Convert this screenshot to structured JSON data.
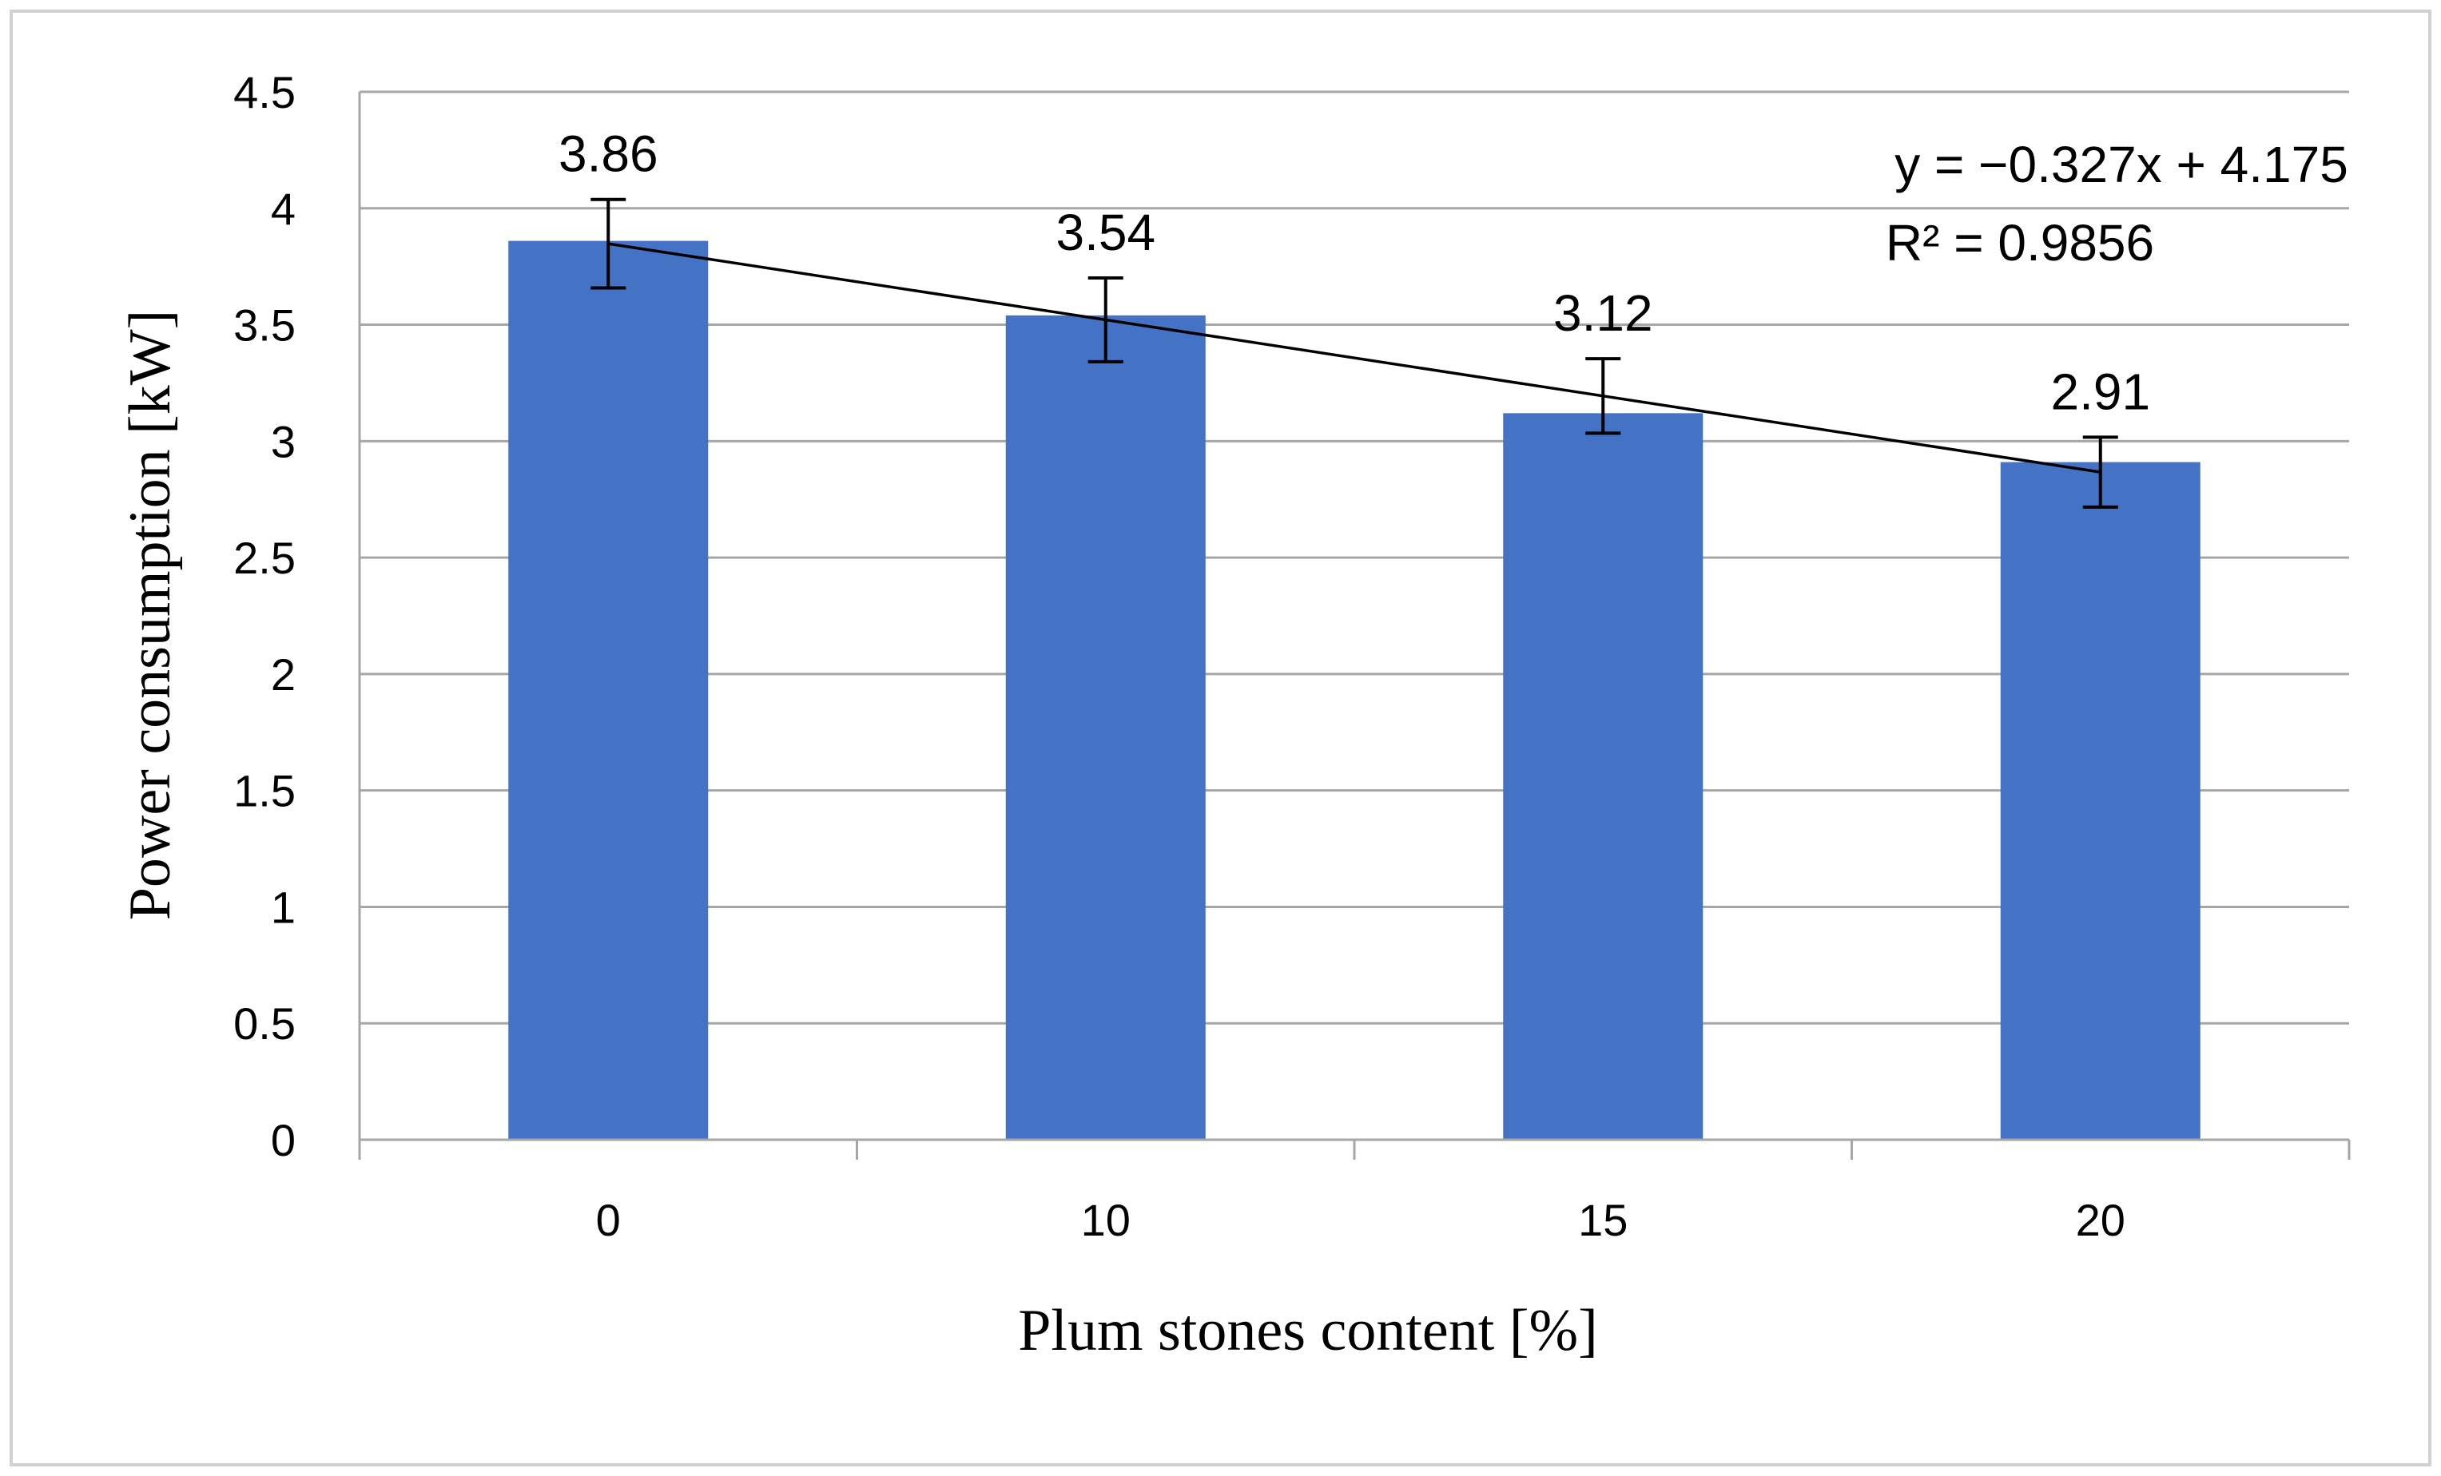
{
  "chart_data": {
    "type": "bar",
    "categories": [
      "0",
      "10",
      "15",
      "20"
    ],
    "values": [
      3.86,
      3.54,
      3.12,
      2.91
    ],
    "data_labels": [
      "3.86",
      "3.54",
      "3.12",
      "2.91"
    ],
    "error_bars": [
      0.19,
      0.18,
      0.16,
      0.15
    ],
    "xlabel": "Plum stones content [%]",
    "ylabel": "Power consumption [kW]",
    "ylim": [
      0,
      4.5
    ],
    "yticks": [
      "0",
      "0.5",
      "1",
      "1.5",
      "2",
      "2.5",
      "3",
      "3.5",
      "4",
      "4.5"
    ],
    "grid": true,
    "bar_color": "#4472C4",
    "trendline": {
      "type": "linear",
      "slope": -0.327,
      "intercept": 4.175,
      "equation": "y = −0.327x + 4.175",
      "r_squared": "R² = 0.9856"
    }
  }
}
